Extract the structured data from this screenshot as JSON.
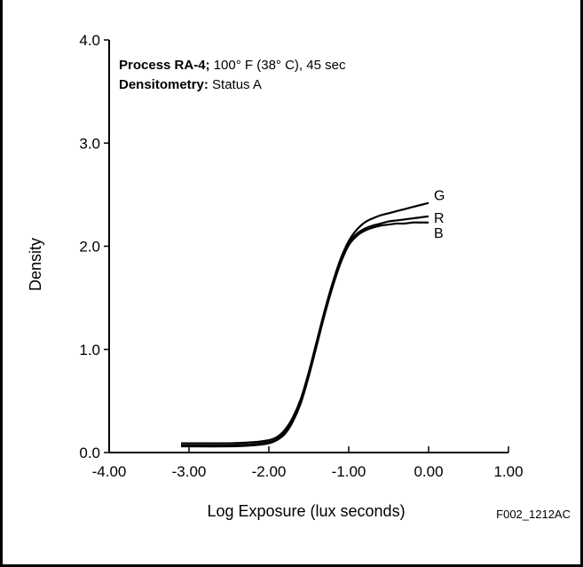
{
  "chart_data": {
    "type": "line",
    "annotations": [
      {
        "bold": "Process RA-4;",
        "text": " 100° F (38° C), 45 sec"
      },
      {
        "bold": "Densitometry:",
        "text": " Status A"
      }
    ],
    "xlabel": "Log Exposure (lux seconds)",
    "ylabel": "Density",
    "xlim": [
      -4.0,
      1.0
    ],
    "ylim": [
      0.0,
      4.0
    ],
    "x_ticks": [
      "-4.00",
      "-3.00",
      "-2.00",
      "-1.00",
      "0.00",
      "1.00"
    ],
    "y_ticks": [
      "0.0",
      "1.0",
      "2.0",
      "3.0",
      "4.0"
    ],
    "grid": false,
    "figure_code": "F002_1212AC",
    "series": [
      {
        "name": "G",
        "x": [
          -3.1,
          -2.5,
          -2.2,
          -2.0,
          -1.9,
          -1.8,
          -1.7,
          -1.6,
          -1.5,
          -1.4,
          -1.3,
          -1.2,
          -1.1,
          -1.0,
          -0.9,
          -0.8,
          -0.7,
          -0.6,
          -0.5,
          -0.4,
          -0.3,
          -0.2,
          -0.1,
          0.0
        ],
        "y": [
          0.09,
          0.09,
          0.1,
          0.12,
          0.15,
          0.22,
          0.34,
          0.52,
          0.78,
          1.08,
          1.38,
          1.65,
          1.88,
          2.05,
          2.16,
          2.23,
          2.27,
          2.3,
          2.32,
          2.34,
          2.36,
          2.38,
          2.4,
          2.42
        ]
      },
      {
        "name": "R",
        "x": [
          -3.1,
          -2.5,
          -2.2,
          -2.0,
          -1.9,
          -1.8,
          -1.7,
          -1.6,
          -1.5,
          -1.4,
          -1.3,
          -1.2,
          -1.1,
          -1.0,
          -0.9,
          -0.8,
          -0.7,
          -0.6,
          -0.5,
          -0.4,
          -0.3,
          -0.2,
          -0.1,
          0.0
        ],
        "y": [
          0.07,
          0.07,
          0.08,
          0.1,
          0.13,
          0.2,
          0.32,
          0.5,
          0.76,
          1.06,
          1.36,
          1.63,
          1.86,
          2.03,
          2.12,
          2.17,
          2.2,
          2.22,
          2.24,
          2.25,
          2.26,
          2.27,
          2.28,
          2.29
        ]
      },
      {
        "name": "B",
        "x": [
          -3.1,
          -2.5,
          -2.2,
          -2.0,
          -1.9,
          -1.8,
          -1.7,
          -1.6,
          -1.5,
          -1.4,
          -1.3,
          -1.2,
          -1.1,
          -1.0,
          -0.9,
          -0.8,
          -0.7,
          -0.6,
          -0.5,
          -0.4,
          -0.3,
          -0.2,
          -0.1,
          0.0
        ],
        "y": [
          0.06,
          0.06,
          0.07,
          0.09,
          0.12,
          0.18,
          0.3,
          0.48,
          0.74,
          1.04,
          1.34,
          1.61,
          1.84,
          2.01,
          2.1,
          2.15,
          2.18,
          2.2,
          2.21,
          2.22,
          2.22,
          2.23,
          2.23,
          2.23
        ]
      }
    ]
  }
}
